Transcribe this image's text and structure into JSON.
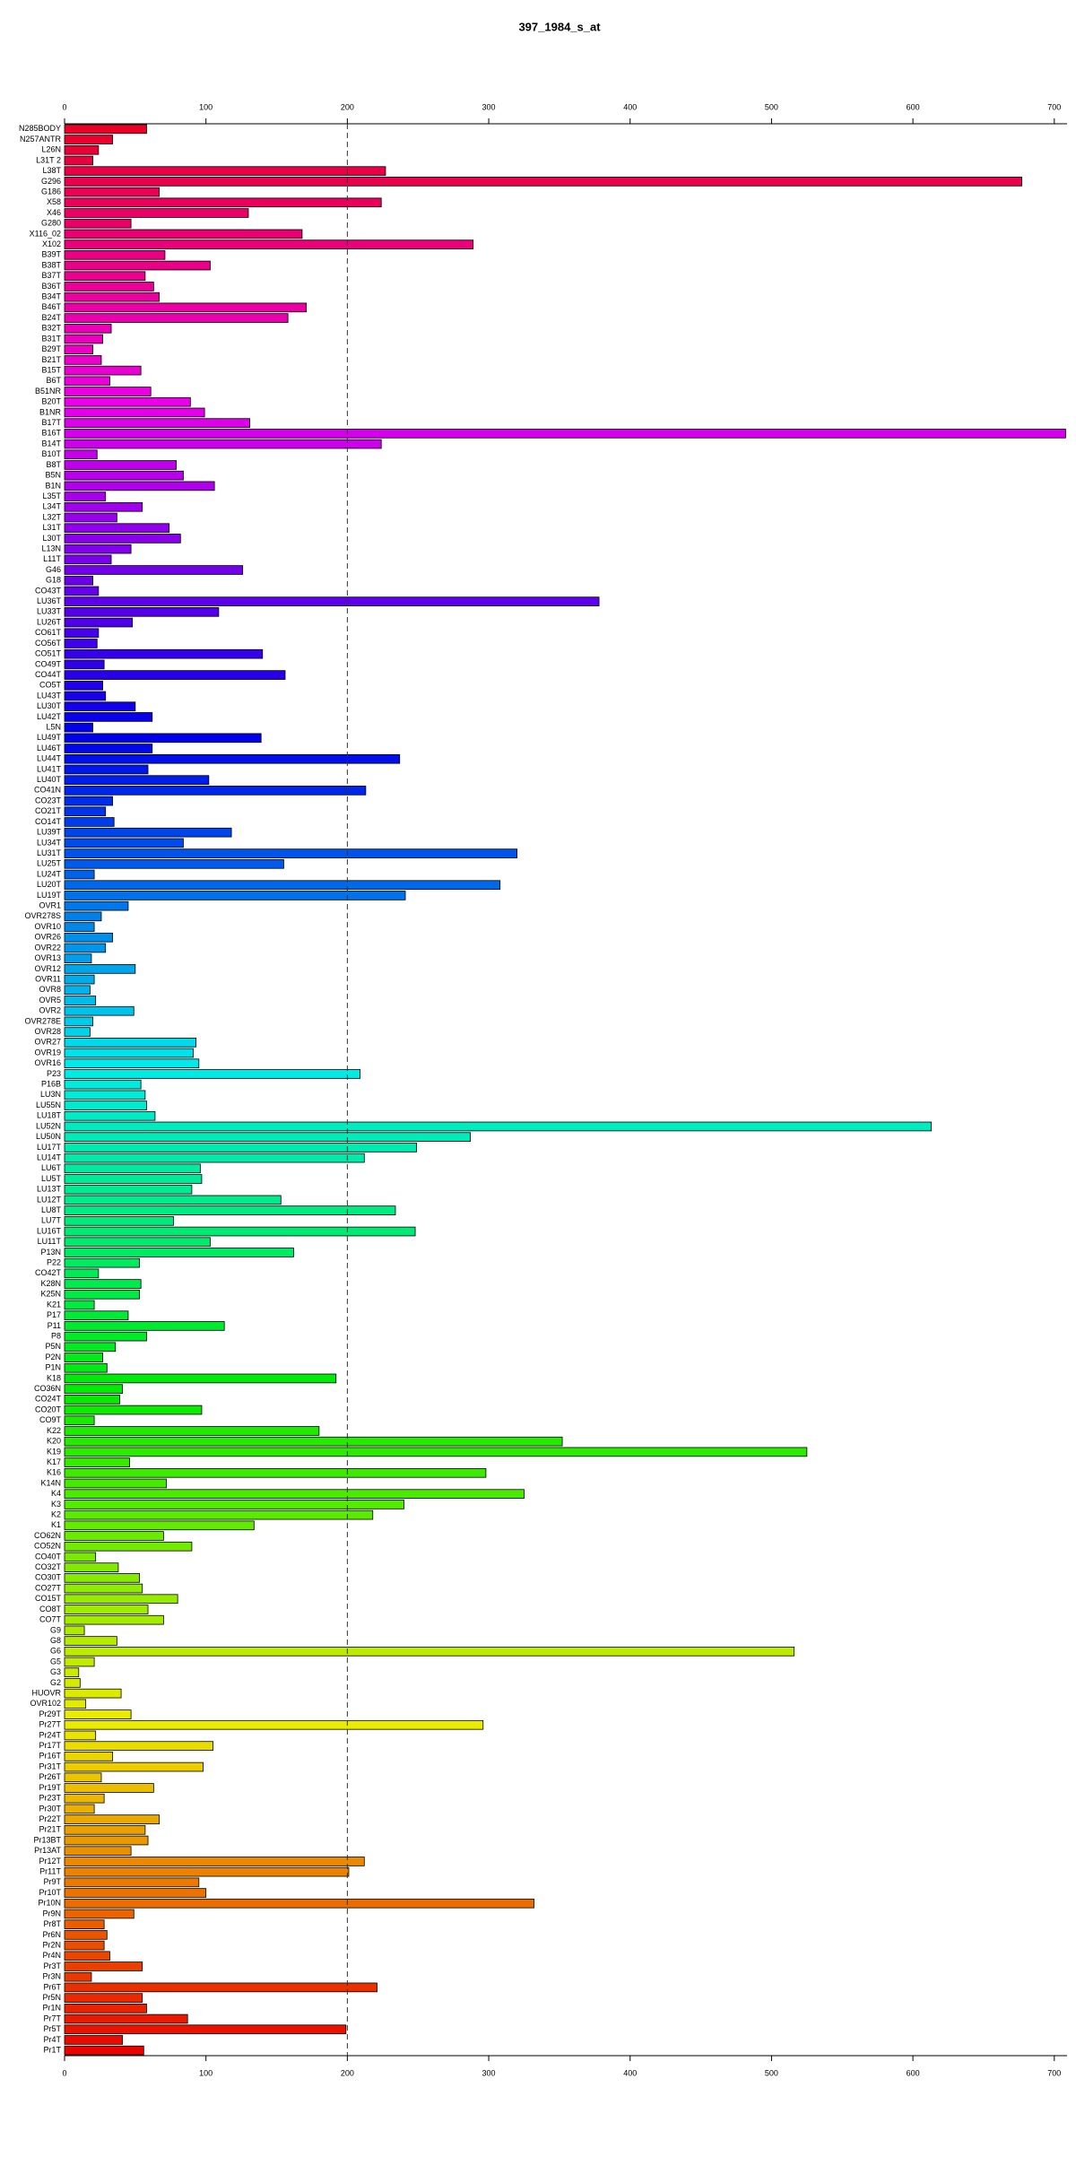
{
  "chart_data": {
    "type": "barh",
    "title": "397_1984_s_at",
    "categories": [
      "N285BODY",
      "N257ANTR",
      "L26N",
      "L31T 2",
      "L38T",
      "G296",
      "G186",
      "X58",
      "X46",
      "G280",
      "X116_02",
      "X102",
      "B39T",
      "B38T",
      "B37T",
      "B36T",
      "B34T",
      "B46T",
      "B24T",
      "B32T",
      "B31T",
      "B29T",
      "B21T",
      "B15T",
      "B6T",
      "B51NR",
      "B20T",
      "B1NR",
      "B17T",
      "B16T",
      "B14T",
      "B10T",
      "B8T",
      "B5N",
      "B1N",
      "L35T",
      "L34T",
      "L32T",
      "L31T",
      "L30T",
      "L13N",
      "L11T",
      "G46",
      "G18",
      "CO43T",
      "LU36T",
      "LU33T",
      "LU26T",
      "CO61T",
      "CO56T",
      "CO51T",
      "CO49T",
      "CO44T",
      "CO5T",
      "LU43T",
      "LU30T",
      "LU42T",
      "L5N",
      "LU49T",
      "LU46T",
      "LU44T",
      "LU41T",
      "LU40T",
      "CO41N",
      "CO23T",
      "CO21T",
      "CO14T",
      "LU39T",
      "LU34T",
      "LU31T",
      "LU25T",
      "LU24T",
      "LU20T",
      "LU19T",
      "OVR1",
      "OVR278S",
      "OVR10",
      "OVR26",
      "OVR22",
      "OVR13",
      "OVR12",
      "OVR11",
      "OVR8",
      "OVR5",
      "OVR2",
      "OVR278E",
      "OVR28",
      "OVR27",
      "OVR19",
      "OVR16",
      "P23",
      "P16B",
      "LU3N",
      "LU55N",
      "LU18T",
      "LU52N",
      "LU50N",
      "LU17T",
      "LU14T",
      "LU6T",
      "LU5T",
      "LU13T",
      "LU12T",
      "LU8T",
      "LU7T",
      "LU16T",
      "LU11T",
      "P13N",
      "P22",
      "CO42T",
      "K28N",
      "K25N",
      "K21",
      "P17",
      "P11",
      "P8",
      "P5N",
      "P2N",
      "P1N",
      "K18",
      "CO36N",
      "CO24T",
      "CO20T",
      "CO9T",
      "K22",
      "K20",
      "K19",
      "K17",
      "K16",
      "K14N",
      "K4",
      "K3",
      "K2",
      "K1",
      "CO62N",
      "CO52N",
      "CO40T",
      "CO32T",
      "CO30T",
      "CO27T",
      "CO15T",
      "CO8T",
      "CO7T",
      "G9",
      "G8",
      "G6",
      "G5",
      "G3",
      "G2",
      "HUOVR",
      "OVR102",
      "Pr29T",
      "Pr27T",
      "Pr24T",
      "Pr17T",
      "Pr16T",
      "Pr31T",
      "Pr26T",
      "Pr19T",
      "Pr23T",
      "Pr30T",
      "Pr22T",
      "Pr21T",
      "Pr13BT",
      "Pr13AT",
      "Pr12T",
      "Pr11T",
      "Pr9T",
      "Pr10T",
      "Pr10N",
      "Pr9N",
      "Pr8T",
      "Pr6N",
      "Pr2N",
      "Pr4N",
      "Pr3T",
      "Pr3N",
      "Pr6T",
      "Pr5N",
      "Pr1N",
      "Pr7T",
      "Pr5T",
      "Pr4T",
      "Pr1T"
    ],
    "values": [
      58,
      34,
      24,
      20,
      227,
      677,
      67,
      224,
      130,
      47,
      168,
      289,
      71,
      103,
      57,
      63,
      67,
      171,
      158,
      33,
      27,
      20,
      26,
      54,
      32,
      61,
      89,
      99,
      131,
      708,
      224,
      23,
      79,
      84,
      106,
      29,
      55,
      37,
      74,
      82,
      47,
      33,
      126,
      20,
      24,
      378,
      109,
      48,
      24,
      23,
      140,
      28,
      156,
      27,
      29,
      50,
      62,
      20,
      139,
      62,
      237,
      59,
      102,
      213,
      34,
      29,
      35,
      118,
      84,
      320,
      155,
      21,
      308,
      241,
      45,
      26,
      21,
      34,
      29,
      19,
      50,
      21,
      18,
      22,
      49,
      20,
      18,
      93,
      91,
      95,
      209,
      54,
      57,
      58,
      64,
      613,
      287,
      249,
      212,
      96,
      97,
      90,
      153,
      234,
      77,
      248,
      103,
      162,
      53,
      24,
      54,
      53,
      21,
      45,
      113,
      58,
      36,
      27,
      30,
      192,
      41,
      39,
      97,
      21,
      180,
      352,
      525,
      46,
      298,
      72,
      325,
      240,
      218,
      134,
      70,
      90,
      22,
      38,
      53,
      55,
      80,
      59,
      70,
      14,
      37,
      516,
      21,
      10,
      11,
      40,
      15,
      47,
      296,
      22,
      105,
      34,
      98,
      26,
      63,
      28,
      21,
      67,
      57,
      59,
      47,
      212,
      201,
      95,
      100,
      332,
      49,
      28,
      30,
      28,
      32,
      55,
      19,
      221,
      55,
      58,
      87,
      199,
      41,
      56
    ],
    "colors": [
      "#eb0027",
      "#eb002e",
      "#eb0036",
      "#eb003d",
      "#eb0045",
      "#eb004c",
      "#eb0054",
      "#eb005b",
      "#eb0063",
      "#eb006a",
      "#eb0072",
      "#eb0079",
      "#eb0081",
      "#eb0088",
      "#eb0090",
      "#eb0097",
      "#eb009f",
      "#eb00a6",
      "#eb00ae",
      "#eb00b5",
      "#eb00bd",
      "#eb00c4",
      "#eb00cc",
      "#eb00d3",
      "#eb00db",
      "#eb00e2",
      "#eb00ea",
      "#e400eb",
      "#dc00eb",
      "#d500eb",
      "#cd00eb",
      "#c600eb",
      "#be00eb",
      "#b700eb",
      "#af00eb",
      "#a800eb",
      "#a000eb",
      "#9900eb",
      "#9100eb",
      "#8a00eb",
      "#8200eb",
      "#7b00eb",
      "#7300eb",
      "#6c00eb",
      "#6400eb",
      "#5d00eb",
      "#5500eb",
      "#4e00eb",
      "#4600eb",
      "#3f00eb",
      "#3700eb",
      "#3000eb",
      "#2800eb",
      "#2100eb",
      "#1900eb",
      "#1200eb",
      "#0a00eb",
      "#0300eb",
      "#0000eb",
      "#0008eb",
      "#000feb",
      "#0017eb",
      "#001eeb",
      "#0026eb",
      "#002deb",
      "#0035eb",
      "#003ceb",
      "#0044eb",
      "#004beb",
      "#0053eb",
      "#005aeb",
      "#0062eb",
      "#0069eb",
      "#0071eb",
      "#0078eb",
      "#0080eb",
      "#0087eb",
      "#008feb",
      "#0096eb",
      "#009eeb",
      "#00a5eb",
      "#00adeb",
      "#00b4eb",
      "#00bceb",
      "#00c3eb",
      "#00cbeb",
      "#00d2eb",
      "#00daeb",
      "#00e1eb",
      "#00e9eb",
      "#00ebe4",
      "#00ebdc",
      "#00ebd5",
      "#00ebcd",
      "#00ebc6",
      "#00ebbe",
      "#00ebb7",
      "#00ebaf",
      "#00eba8",
      "#00eba0",
      "#00eb99",
      "#00eb91",
      "#00eb8a",
      "#00eb82",
      "#00eb7b",
      "#00eb73",
      "#00eb6c",
      "#00eb64",
      "#00eb5d",
      "#00eb55",
      "#00eb4e",
      "#00eb46",
      "#00eb3f",
      "#00eb37",
      "#00eb30",
      "#00eb28",
      "#00eb21",
      "#00eb19",
      "#00eb12",
      "#00eb0a",
      "#00eb03",
      "#08eb00",
      "#0feb00",
      "#17eb00",
      "#1eeb00",
      "#26eb00",
      "#2deb00",
      "#35eb00",
      "#3ceb00",
      "#44eb00",
      "#4beb00",
      "#53eb00",
      "#5aeb00",
      "#62eb00",
      "#69eb00",
      "#71eb00",
      "#78eb00",
      "#80eb00",
      "#87eb00",
      "#8feb00",
      "#96eb00",
      "#9eeb00",
      "#a5eb00",
      "#adeb00",
      "#b4eb00",
      "#bceb00",
      "#c3eb00",
      "#cbeb00",
      "#d2eb00",
      "#daeb00",
      "#e1eb00",
      "#e9eb00",
      "#ebeb00",
      "#ebe400",
      "#ebdc00",
      "#ebd500",
      "#ebcd00",
      "#ebc600",
      "#ebbe00",
      "#ebb700",
      "#ebaf00",
      "#eba800",
      "#eba000",
      "#eb9900",
      "#eb9100",
      "#eb8a00",
      "#eb8200",
      "#eb7b00",
      "#eb7300",
      "#eb6c00",
      "#eb6400",
      "#eb5d00",
      "#eb5500",
      "#eb4e00",
      "#eb4600",
      "#eb3f00",
      "#eb3700",
      "#eb3000",
      "#eb2800",
      "#eb2100",
      "#eb1900",
      "#eb1200",
      "#eb0a00",
      "#eb0300"
    ],
    "xlim": [
      0,
      709
    ],
    "xticks": [
      0,
      100,
      200,
      300,
      400,
      500,
      600,
      700
    ],
    "vline": 200
  }
}
